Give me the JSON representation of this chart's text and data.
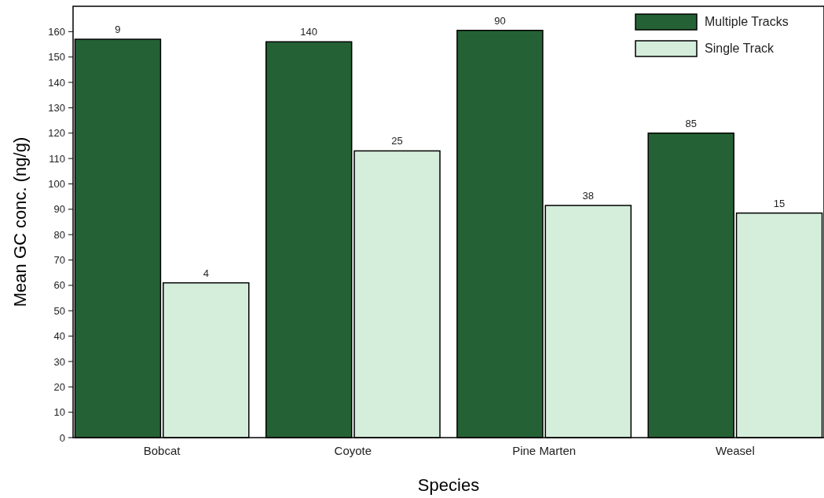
{
  "chart_data": {
    "type": "bar",
    "xlabel": "Species",
    "ylabel": "Mean GC conc. (ng/g)",
    "categories": [
      "Bobcat",
      "Coyote",
      "Pine Marten",
      "Weasel"
    ],
    "series": [
      {
        "name": "Multiple Tracks",
        "color": "#246235",
        "values": [
          157,
          156,
          160.5,
          120
        ]
      },
      {
        "name": "Single Track",
        "color": "#d4eedb",
        "values": [
          61,
          113,
          91.5,
          88.5
        ]
      }
    ],
    "annotations": [
      "9",
      "4",
      "140",
      "25",
      "90",
      "38",
      "85",
      "15"
    ],
    "ylim": [
      0,
      170
    ],
    "yticks": [
      0,
      10,
      20,
      30,
      40,
      50,
      60,
      70,
      80,
      90,
      100,
      110,
      120,
      130,
      140,
      150,
      160
    ],
    "grid": false,
    "legend": "top right"
  }
}
